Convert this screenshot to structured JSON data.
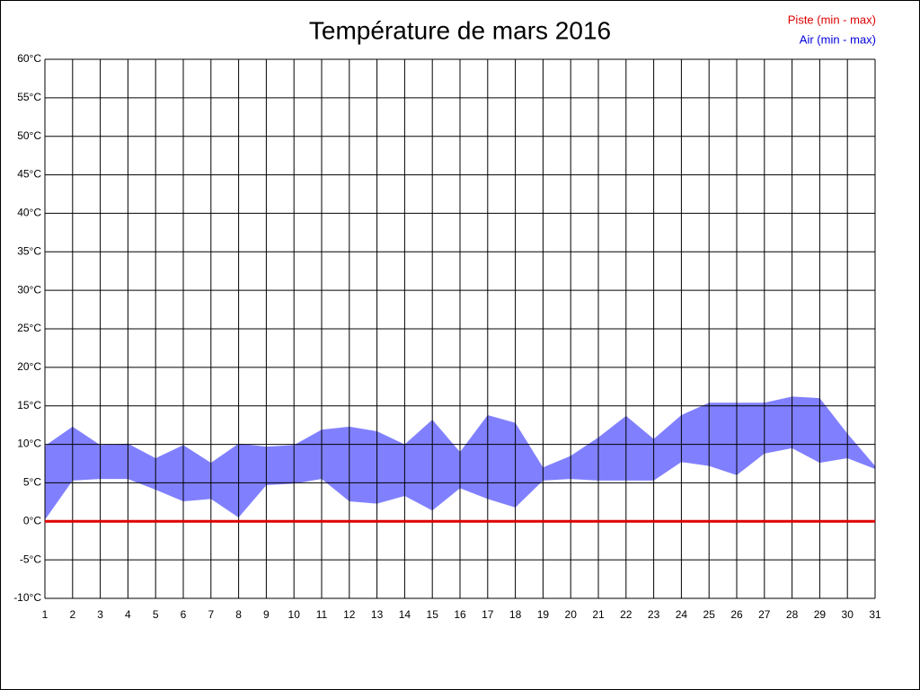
{
  "chart_data": {
    "type": "range-area",
    "title": "Température de mars 2016",
    "x": [
      1,
      2,
      3,
      4,
      5,
      6,
      7,
      8,
      9,
      10,
      11,
      12,
      13,
      14,
      15,
      16,
      17,
      18,
      19,
      20,
      21,
      22,
      23,
      24,
      25,
      26,
      27,
      28,
      29,
      30,
      31
    ],
    "xlim": [
      1,
      31
    ],
    "xticks": [
      1,
      2,
      3,
      4,
      5,
      6,
      7,
      8,
      9,
      10,
      11,
      12,
      13,
      14,
      15,
      16,
      17,
      18,
      19,
      20,
      21,
      22,
      23,
      24,
      25,
      26,
      27,
      28,
      29,
      30,
      31
    ],
    "ylim": [
      -10,
      60
    ],
    "yticks": [
      {
        "value": -10,
        "label": "-10°C"
      },
      {
        "value": -5,
        "label": "-5°C"
      },
      {
        "value": 0,
        "label": "0°C"
      },
      {
        "value": 5,
        "label": "5°C"
      },
      {
        "value": 10,
        "label": "10°C"
      },
      {
        "value": 15,
        "label": "15°C"
      },
      {
        "value": 20,
        "label": "20°C"
      },
      {
        "value": 25,
        "label": "25°C"
      },
      {
        "value": 30,
        "label": "30°C"
      },
      {
        "value": 35,
        "label": "35°C"
      },
      {
        "value": 40,
        "label": "40°C"
      },
      {
        "value": 45,
        "label": "45°C"
      },
      {
        "value": 50,
        "label": "50°C"
      },
      {
        "value": 55,
        "label": "55°C"
      },
      {
        "value": 60,
        "label": "60°C"
      }
    ],
    "grid": true,
    "legend": "top-right",
    "series": [
      {
        "name": "Piste (min - max)",
        "color": "#dd0000",
        "min": [
          0,
          0,
          0,
          0,
          0,
          0,
          0,
          0,
          0,
          0,
          0,
          0,
          0,
          0,
          0,
          0,
          0,
          0,
          0,
          0,
          0,
          0,
          0,
          0,
          0,
          0,
          0,
          0,
          0,
          0,
          0
        ],
        "max": [
          0,
          0,
          0,
          0,
          0,
          0,
          0,
          0,
          0,
          0,
          0,
          0,
          0,
          0,
          0,
          0,
          0,
          0,
          0,
          0,
          0,
          0,
          0,
          0,
          0,
          0,
          0,
          0,
          0,
          0,
          0
        ]
      },
      {
        "name": "Air (min - max)",
        "color": "#0000dd",
        "fill": "#8080ff",
        "min": [
          0.2,
          5.3,
          5.5,
          5.5,
          4.1,
          2.6,
          2.9,
          0.5,
          4.7,
          4.9,
          5.5,
          2.6,
          2.3,
          3.3,
          1.4,
          4.3,
          2.9,
          1.8,
          5.3,
          5.5,
          5.3,
          5.3,
          5.3,
          7.7,
          7.2,
          6.0,
          8.8,
          9.5,
          7.6,
          8.2,
          6.8
        ],
        "max": [
          9.8,
          12.3,
          9.9,
          10.1,
          8.2,
          9.9,
          7.6,
          10.1,
          9.7,
          9.9,
          11.9,
          12.3,
          11.7,
          10.0,
          13.2,
          9.0,
          13.8,
          12.8,
          7.0,
          8.5,
          10.9,
          13.7,
          10.7,
          13.8,
          15.4,
          15.4,
          15.4,
          16.2,
          16.0,
          11.4,
          7.2
        ]
      }
    ]
  }
}
